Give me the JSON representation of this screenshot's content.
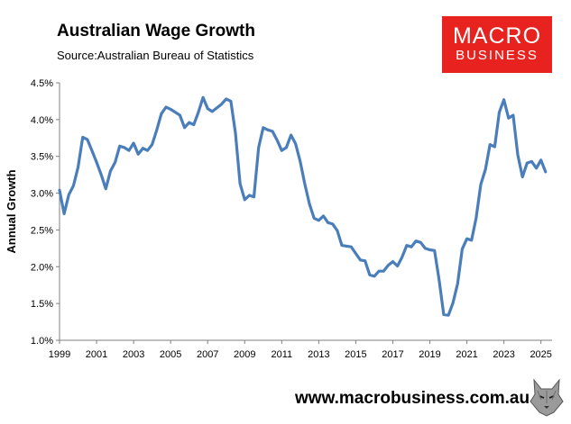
{
  "header": {
    "title": "Australian Wage Growth",
    "source": "Source:Australian Bureau of Statistics"
  },
  "logo": {
    "line1": "MACRO",
    "line2": "BUSINESS"
  },
  "footer": {
    "website": "www.macrobusiness.com.au",
    "emblem_icon": "wolf-head-icon"
  },
  "colors": {
    "line": "#4a7ebb",
    "logo_bg": "#e8231f"
  },
  "chart_data": {
    "type": "line",
    "title": "Australian Wage Growth",
    "subtitle": "Source:Australian Bureau of Statistics",
    "ylabel": "Annual Growth",
    "xlabel": "",
    "xlim": [
      1999,
      2025.6
    ],
    "ylim": [
      1.0,
      4.5
    ],
    "y_tick_labels": [
      "1.0%",
      "1.5%",
      "2.0%",
      "2.5%",
      "3.0%",
      "3.5%",
      "4.0%",
      "4.5%"
    ],
    "y_ticks": [
      1.0,
      1.5,
      2.0,
      2.5,
      3.0,
      3.5,
      4.0,
      4.5
    ],
    "x_tick_labels": [
      "1999",
      "2001",
      "2003",
      "2005",
      "2007",
      "2009",
      "2011",
      "2013",
      "2015",
      "2017",
      "2019",
      "2021",
      "2023",
      "2025"
    ],
    "x_ticks": [
      1999,
      2001,
      2003,
      2005,
      2007,
      2009,
      2011,
      2013,
      2015,
      2017,
      2019,
      2021,
      2023,
      2025
    ],
    "grid": false,
    "series": [
      {
        "x": [
          1999.0,
          1999.25,
          1999.5,
          1999.75,
          2000.0,
          2000.25,
          2000.5,
          2000.75,
          2001.0,
          2001.25,
          2001.5,
          2001.75,
          2002.0,
          2002.25,
          2002.5,
          2002.75,
          2003.0,
          2003.25,
          2003.5,
          2003.75,
          2004.0,
          2004.25,
          2004.5,
          2004.75,
          2005.0,
          2005.25,
          2005.5,
          2005.75,
          2006.0,
          2006.25,
          2006.5,
          2006.75,
          2007.0,
          2007.25,
          2007.5,
          2007.75,
          2008.0,
          2008.25,
          2008.5,
          2008.75,
          2009.0,
          2009.25,
          2009.5,
          2009.75,
          2010.0,
          2010.25,
          2010.5,
          2010.75,
          2011.0,
          2011.25,
          2011.5,
          2011.75,
          2012.0,
          2012.25,
          2012.5,
          2012.75,
          2013.0,
          2013.25,
          2013.5,
          2013.75,
          2014.0,
          2014.25,
          2014.5,
          2014.75,
          2015.0,
          2015.25,
          2015.5,
          2015.75,
          2016.0,
          2016.25,
          2016.5,
          2016.75,
          2017.0,
          2017.25,
          2017.5,
          2017.75,
          2018.0,
          2018.25,
          2018.5,
          2018.75,
          2019.0,
          2019.25,
          2019.5,
          2019.75,
          2020.0,
          2020.25,
          2020.5,
          2020.75,
          2021.0,
          2021.25,
          2021.5,
          2021.75,
          2022.0,
          2022.25,
          2022.5,
          2022.75,
          2023.0,
          2023.25,
          2023.5,
          2023.75,
          2024.0,
          2024.25,
          2024.5,
          2024.75,
          2025.0,
          2025.25
        ],
        "values": [
          3.04,
          2.72,
          2.98,
          3.1,
          3.35,
          3.76,
          3.73,
          3.58,
          3.42,
          3.25,
          3.06,
          3.3,
          3.42,
          3.64,
          3.62,
          3.58,
          3.68,
          3.53,
          3.61,
          3.58,
          3.66,
          3.86,
          4.08,
          4.17,
          4.14,
          4.1,
          4.06,
          3.89,
          3.96,
          3.93,
          4.1,
          4.3,
          4.15,
          4.11,
          4.16,
          4.21,
          4.28,
          4.25,
          3.82,
          3.13,
          2.91,
          2.97,
          2.95,
          3.62,
          3.89,
          3.86,
          3.84,
          3.72,
          3.58,
          3.62,
          3.79,
          3.67,
          3.43,
          3.12,
          2.85,
          2.66,
          2.63,
          2.69,
          2.6,
          2.58,
          2.49,
          2.29,
          2.28,
          2.27,
          2.18,
          2.09,
          2.08,
          1.89,
          1.87,
          1.94,
          1.94,
          2.02,
          2.07,
          2.01,
          2.13,
          2.29,
          2.27,
          2.35,
          2.33,
          2.25,
          2.23,
          2.22,
          1.82,
          1.35,
          1.34,
          1.51,
          1.77,
          2.24,
          2.38,
          2.36,
          2.66,
          3.12,
          3.32,
          3.66,
          3.63,
          4.1,
          4.27,
          4.02,
          4.06,
          3.52,
          3.22,
          3.41,
          3.43,
          3.34,
          3.45,
          3.29
        ]
      }
    ]
  }
}
